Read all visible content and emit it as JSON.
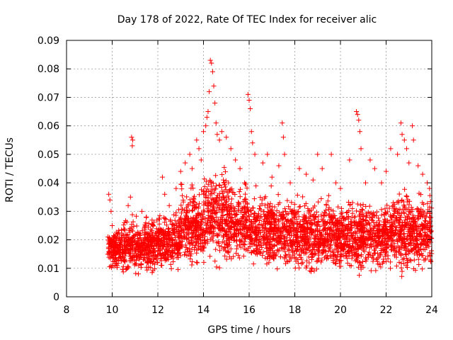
{
  "chart_data": {
    "type": "scatter",
    "title": "Day 178 of 2022, Rate Of TEC Index for receiver alic",
    "xlabel": "GPS time / hours",
    "ylabel": "ROTI / TECUs",
    "xlim": [
      8,
      24
    ],
    "ylim": [
      0,
      0.09
    ],
    "xticks": [
      "8",
      "10",
      "12",
      "14",
      "16",
      "18",
      "20",
      "22",
      "24"
    ],
    "yticks": [
      "0",
      "0.01",
      "0.02",
      "0.03",
      "0.04",
      "0.05",
      "0.06",
      "0.07",
      "0.08",
      "0.09"
    ],
    "grid": true,
    "marker": "+",
    "series": [
      {
        "name": "ROTI",
        "color": "#ff0000",
        "points": [
          [
            9.85,
            0.036
          ],
          [
            9.9,
            0.034
          ],
          [
            9.95,
            0.03
          ],
          [
            10.0,
            0.025
          ],
          [
            10.7,
            0.032
          ],
          [
            10.8,
            0.035
          ],
          [
            10.85,
            0.056
          ],
          [
            10.9,
            0.055
          ],
          [
            10.88,
            0.053
          ],
          [
            11.3,
            0.03
          ],
          [
            11.5,
            0.028
          ],
          [
            11.8,
            0.025
          ],
          [
            12.2,
            0.042
          ],
          [
            12.3,
            0.036
          ],
          [
            12.5,
            0.032
          ],
          [
            12.8,
            0.038
          ],
          [
            13.0,
            0.044
          ],
          [
            13.2,
            0.047
          ],
          [
            13.4,
            0.05
          ],
          [
            13.5,
            0.045
          ],
          [
            13.7,
            0.055
          ],
          [
            13.8,
            0.052
          ],
          [
            13.9,
            0.048
          ],
          [
            14.0,
            0.058
          ],
          [
            14.1,
            0.06
          ],
          [
            14.15,
            0.063
          ],
          [
            14.2,
            0.065
          ],
          [
            14.25,
            0.072
          ],
          [
            14.3,
            0.083
          ],
          [
            14.35,
            0.082
          ],
          [
            14.4,
            0.079
          ],
          [
            14.45,
            0.074
          ],
          [
            14.5,
            0.068
          ],
          [
            14.55,
            0.061
          ],
          [
            14.6,
            0.057
          ],
          [
            14.7,
            0.055
          ],
          [
            14.8,
            0.058
          ],
          [
            15.0,
            0.056
          ],
          [
            15.2,
            0.052
          ],
          [
            15.4,
            0.048
          ],
          [
            15.6,
            0.045
          ],
          [
            15.8,
            0.04
          ],
          [
            15.95,
            0.071
          ],
          [
            16.0,
            0.069
          ],
          [
            16.05,
            0.066
          ],
          [
            16.1,
            0.058
          ],
          [
            16.15,
            0.054
          ],
          [
            16.25,
            0.05
          ],
          [
            16.6,
            0.047
          ],
          [
            16.8,
            0.05
          ],
          [
            17.0,
            0.042
          ],
          [
            17.3,
            0.046
          ],
          [
            17.45,
            0.061
          ],
          [
            17.5,
            0.056
          ],
          [
            17.55,
            0.05
          ],
          [
            17.8,
            0.04
          ],
          [
            18.2,
            0.045
          ],
          [
            18.5,
            0.043
          ],
          [
            18.8,
            0.041
          ],
          [
            19.0,
            0.05
          ],
          [
            19.2,
            0.045
          ],
          [
            19.6,
            0.05
          ],
          [
            19.8,
            0.04
          ],
          [
            20.0,
            0.038
          ],
          [
            20.4,
            0.048
          ],
          [
            20.7,
            0.065
          ],
          [
            20.75,
            0.064
          ],
          [
            20.8,
            0.062
          ],
          [
            20.85,
            0.058
          ],
          [
            20.9,
            0.052
          ],
          [
            21.1,
            0.04
          ],
          [
            21.3,
            0.048
          ],
          [
            21.5,
            0.045
          ],
          [
            21.8,
            0.04
          ],
          [
            22.0,
            0.044
          ],
          [
            22.2,
            0.052
          ],
          [
            22.5,
            0.05
          ],
          [
            22.65,
            0.061
          ],
          [
            22.7,
            0.057
          ],
          [
            22.8,
            0.055
          ],
          [
            22.9,
            0.052
          ],
          [
            23.0,
            0.047
          ],
          [
            23.15,
            0.06
          ],
          [
            23.2,
            0.055
          ],
          [
            23.4,
            0.046
          ],
          [
            23.6,
            0.043
          ],
          [
            23.8,
            0.04
          ],
          [
            23.9,
            0.038
          ]
        ]
      }
    ],
    "dense_bands": [
      {
        "x0": 9.8,
        "x1": 10.4,
        "lo": 0.008,
        "hi": 0.022
      },
      {
        "x0": 10.4,
        "x1": 12.0,
        "lo": 0.006,
        "hi": 0.025
      },
      {
        "x0": 12.0,
        "x1": 13.0,
        "lo": 0.007,
        "hi": 0.028
      },
      {
        "x0": 13.0,
        "x1": 14.0,
        "lo": 0.008,
        "hi": 0.035
      },
      {
        "x0": 14.0,
        "x1": 15.0,
        "lo": 0.009,
        "hi": 0.04
      },
      {
        "x0": 15.0,
        "x1": 16.0,
        "lo": 0.008,
        "hi": 0.036
      },
      {
        "x0": 16.0,
        "x1": 18.0,
        "lo": 0.007,
        "hi": 0.033
      },
      {
        "x0": 18.0,
        "x1": 20.0,
        "lo": 0.006,
        "hi": 0.031
      },
      {
        "x0": 20.0,
        "x1": 22.0,
        "lo": 0.006,
        "hi": 0.03
      },
      {
        "x0": 22.0,
        "x1": 24.0,
        "lo": 0.006,
        "hi": 0.033
      }
    ]
  }
}
